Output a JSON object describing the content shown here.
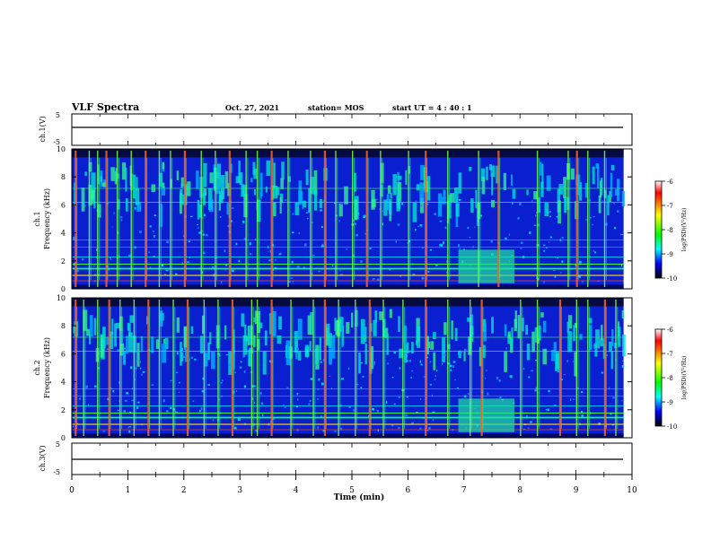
{
  "header": {
    "title": "VLF Spectra",
    "date": "Oct. 27, 2021",
    "station": "station= MOS",
    "start": "start  UT =   4 : 40 : 1"
  },
  "colorbar": {
    "label": "log(PSD)(V²/Hz)",
    "ticks": [
      "-6",
      "-7",
      "-8",
      "-9",
      "-10"
    ],
    "colors": [
      "#ffffff",
      "#ff0000",
      "#ffff00",
      "#00ff00",
      "#00ffff",
      "#0000ff",
      "#000000"
    ]
  },
  "chart_data": [
    {
      "type": "line",
      "name": "waveform-ch1",
      "ylabel": "ch.1(V)",
      "ylim": [
        -5,
        5
      ],
      "yticks": [
        "5",
        "-5"
      ],
      "xlim": [
        0,
        10
      ],
      "x": [
        0,
        10
      ],
      "values": [
        0,
        0
      ]
    },
    {
      "type": "heatmap",
      "name": "spectrogram-ch1",
      "ylabel": "ch.1\nFrequency (kHz)",
      "ylim": [
        0,
        10
      ],
      "yticks": [
        "0",
        "2",
        "4",
        "6",
        "8",
        "10"
      ],
      "xlim": [
        0,
        10
      ],
      "zlim": [
        -10,
        -6
      ],
      "x_end": 9.85,
      "bursts": [
        0.05,
        0.3,
        0.45,
        0.6,
        0.8,
        1.05,
        1.3,
        1.55,
        1.75,
        2.0,
        2.3,
        2.55,
        2.8,
        3.1,
        3.3,
        3.55,
        3.85,
        4.25,
        4.5,
        4.7,
        5.0,
        5.25,
        5.5,
        6.0,
        6.3,
        6.7,
        7.25,
        7.6,
        8.3,
        8.85,
        9.0,
        9.2,
        9.5
      ]
    },
    {
      "type": "heatmap",
      "name": "spectrogram-ch2",
      "ylabel": "ch.2\nFrequency (kHz)",
      "ylim": [
        0,
        10
      ],
      "yticks": [
        "0",
        "2",
        "4",
        "6",
        "8",
        "10"
      ],
      "xlim": [
        0,
        10
      ],
      "zlim": [
        -10,
        -6
      ],
      "x_end": 9.85,
      "bursts": [
        0.05,
        0.2,
        0.45,
        0.65,
        0.85,
        1.1,
        1.35,
        1.55,
        1.8,
        2.05,
        2.35,
        2.6,
        2.85,
        3.2,
        3.3,
        3.55,
        3.9,
        4.3,
        4.5,
        4.75,
        5.05,
        5.3,
        5.55,
        5.9,
        6.3,
        6.7,
        7.1,
        7.3,
        8.0,
        8.3,
        8.7,
        9.0,
        9.2,
        9.5,
        9.7
      ]
    },
    {
      "type": "line",
      "name": "waveform-ch3",
      "ylabel": "ch.3(V)",
      "ylim": [
        -5,
        5
      ],
      "yticks": [
        "5",
        "-5"
      ],
      "xlim": [
        0,
        10
      ],
      "x": [
        0,
        10
      ],
      "values": [
        0,
        0
      ],
      "xlabel": "Time (min)",
      "xticks": [
        "0",
        "1",
        "2",
        "3",
        "4",
        "5",
        "6",
        "7",
        "8",
        "9",
        "10"
      ]
    }
  ]
}
